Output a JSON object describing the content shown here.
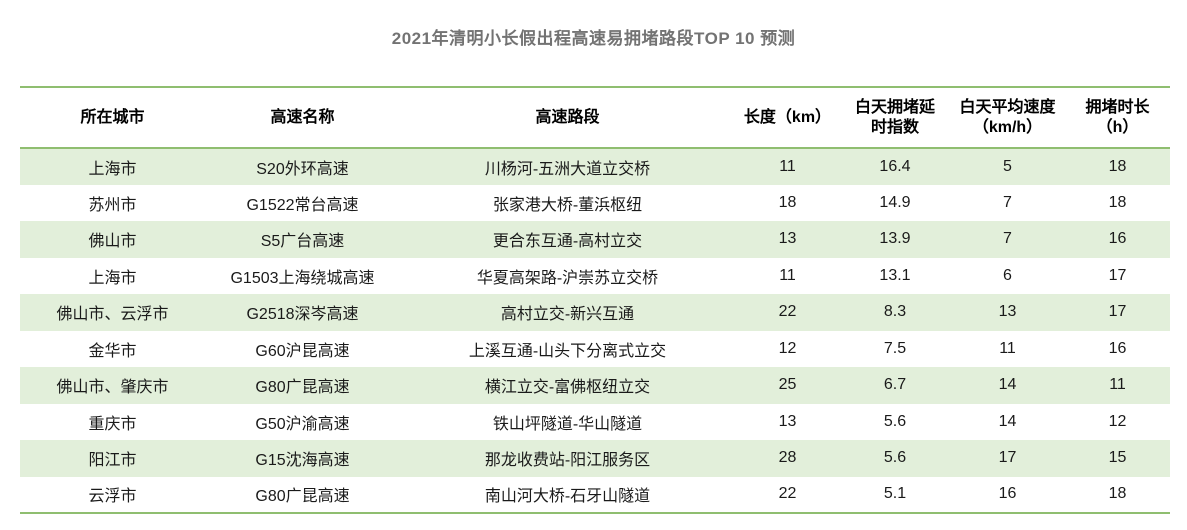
{
  "title": "2021年清明小长假出程高速易拥堵路段TOP 10 预测",
  "colors": {
    "border_green": "#8fbe70",
    "row_alt_bg": "#e2efda",
    "title_text": "#737373",
    "cell_text": "#1a1a1a"
  },
  "table": {
    "columns": [
      {
        "key": "city",
        "label": "所在城市"
      },
      {
        "key": "highway-name",
        "label": "高速名称"
      },
      {
        "key": "highway-section",
        "label": "高速路段"
      },
      {
        "key": "length-km",
        "label": "长度（km）"
      },
      {
        "key": "daytime-delay-index",
        "label": "白天拥堵延\n时指数"
      },
      {
        "key": "daytime-avg-speed",
        "label": "白天平均速度\n（km/h）"
      },
      {
        "key": "congestion-duration",
        "label": "拥堵时长\n（h）"
      }
    ],
    "rows": [
      [
        "上海市",
        "S20外环高速",
        "川杨河-五洲大道立交桥",
        "11",
        "16.4",
        "5",
        "18"
      ],
      [
        "苏州市",
        "G1522常台高速",
        "张家港大桥-董浜枢纽",
        "18",
        "14.9",
        "7",
        "18"
      ],
      [
        "佛山市",
        "S5广台高速",
        "更合东互通-高村立交",
        "13",
        "13.9",
        "7",
        "16"
      ],
      [
        "上海市",
        "G1503上海绕城高速",
        "华夏高架路-沪崇苏立交桥",
        "11",
        "13.1",
        "6",
        "17"
      ],
      [
        "佛山市、云浮市",
        "G2518深岑高速",
        "高村立交-新兴互通",
        "22",
        "8.3",
        "13",
        "17"
      ],
      [
        "金华市",
        "G60沪昆高速",
        "上溪互通-山头下分离式立交",
        "12",
        "7.5",
        "11",
        "16"
      ],
      [
        "佛山市、肇庆市",
        "G80广昆高速",
        "横江立交-富佛枢纽立交",
        "25",
        "6.7",
        "14",
        "11"
      ],
      [
        "重庆市",
        "G50沪渝高速",
        "铁山坪隧道-华山隧道",
        "13",
        "5.6",
        "14",
        "12"
      ],
      [
        "阳江市",
        "G15沈海高速",
        "那龙收费站-阳江服务区",
        "28",
        "5.6",
        "17",
        "15"
      ],
      [
        "云浮市",
        "G80广昆高速",
        "南山河大桥-石牙山隧道",
        "22",
        "5.1",
        "16",
        "18"
      ]
    ]
  },
  "chart_data": {
    "type": "table",
    "title": "2021年清明小长假出程高速易拥堵路段TOP 10 预测",
    "columns": [
      "所在城市",
      "高速名称",
      "高速路段",
      "长度（km）",
      "白天拥堵延时指数",
      "白天平均速度（km/h）",
      "拥堵时长（h）"
    ],
    "rows": [
      [
        "上海市",
        "S20外环高速",
        "川杨河-五洲大道立交桥",
        11,
        16.4,
        5,
        18
      ],
      [
        "苏州市",
        "G1522常台高速",
        "张家港大桥-董浜枢纽",
        18,
        14.9,
        7,
        18
      ],
      [
        "佛山市",
        "S5广台高速",
        "更合东互通-高村立交",
        13,
        13.9,
        7,
        16
      ],
      [
        "上海市",
        "G1503上海绕城高速",
        "华夏高架路-沪崇苏立交桥",
        11,
        13.1,
        6,
        17
      ],
      [
        "佛山市、云浮市",
        "G2518深岑高速",
        "高村立交-新兴互通",
        22,
        8.3,
        13,
        17
      ],
      [
        "金华市",
        "G60沪昆高速",
        "上溪互通-山头下分离式立交",
        12,
        7.5,
        11,
        16
      ],
      [
        "佛山市、肇庆市",
        "G80广昆高速",
        "横江立交-富佛枢纽立交",
        25,
        6.7,
        14,
        11
      ],
      [
        "重庆市",
        "G50沪渝高速",
        "铁山坪隧道-华山隧道",
        13,
        5.6,
        14,
        12
      ],
      [
        "阳江市",
        "G15沈海高速",
        "那龙收费站-阳江服务区",
        28,
        5.6,
        17,
        15
      ],
      [
        "云浮市",
        "G80广昆高速",
        "南山河大桥-石牙山隧道",
        22,
        5.1,
        16,
        18
      ]
    ]
  }
}
